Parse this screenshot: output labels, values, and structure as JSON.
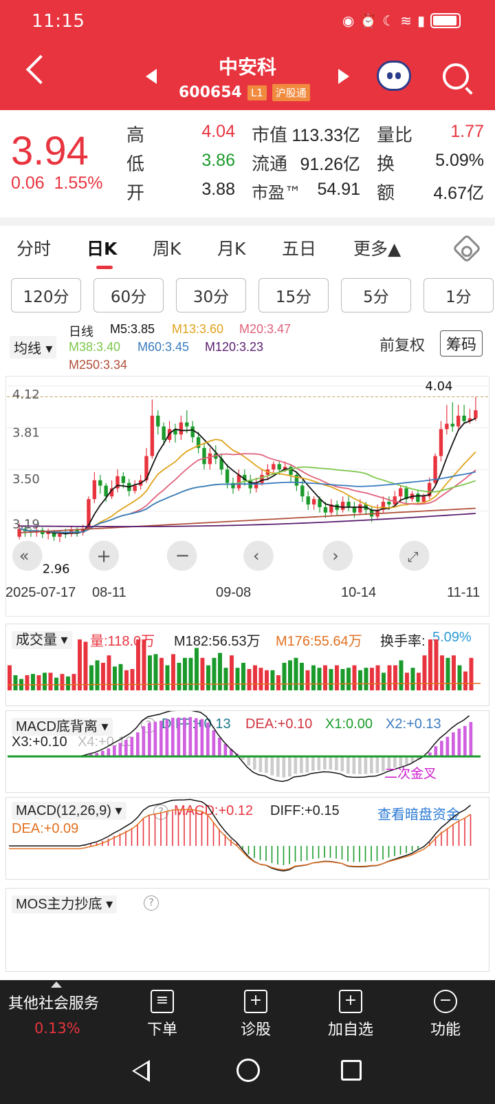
{
  "status": {
    "time": "11:15"
  },
  "header": {
    "name": "中安科",
    "code": "600654",
    "tag_l1": "L1",
    "tag_exchange": "沪股通"
  },
  "quote": {
    "price": "3.94",
    "change": "0.06",
    "change_pct": "1.55%",
    "high_label": "高",
    "high": "4.04",
    "low_label": "低",
    "low": "3.86",
    "open_label": "开",
    "open": "3.88",
    "mcap_label": "市值",
    "mcap": "113.33亿",
    "float_label": "流通",
    "float": "91.26亿",
    "pe_label": "市盈™",
    "pe": "54.91",
    "vr_label": "量比",
    "vr": "1.77",
    "turn_label": "换",
    "turn": "5.09%",
    "amt_label": "额",
    "amt": "4.67亿"
  },
  "tabs": [
    "分时",
    "日K",
    "周K",
    "月K",
    "五日",
    "更多▲"
  ],
  "minute_tabs": [
    "120分",
    "60分",
    "30分",
    "15分",
    "5分",
    "1分"
  ],
  "chart_header": {
    "ma_dropdown": "均线",
    "line_type": "日线",
    "m5": "M5:3.85",
    "m13": "M13:3.60",
    "m20": "M20:3.47",
    "m38": "M38:3.40",
    "m60": "M60:3.45",
    "m120": "M120:3.23",
    "m250": "M250:3.34",
    "adjust": "前复权",
    "chips": "筹码"
  },
  "colors": {
    "red": "#e8343f",
    "green": "#1a9a2b",
    "m5": "#111111",
    "m13": "#e0a21a",
    "m20": "#e0607a",
    "m38": "#7cc64a",
    "m60": "#3a7bbf",
    "m120": "#5a1e6e",
    "m250": "#b0503a"
  },
  "chart_data": {
    "type": "candlestick",
    "y_ticks": [
      "4.12",
      "3.81",
      "3.50",
      "3.19"
    ],
    "x_ticks": [
      "2025-07-17",
      "08-11",
      "09-08",
      "10-14",
      "11-11"
    ],
    "max_label": "4.04",
    "min_label": "2.96",
    "candles": [
      [
        3.0,
        3.06,
        3.1,
        2.98
      ],
      [
        3.06,
        3.04,
        3.08,
        3.0
      ],
      [
        3.04,
        3.03,
        3.06,
        3.0
      ],
      [
        3.03,
        3.05,
        3.08,
        3.0
      ],
      [
        3.05,
        3.02,
        3.07,
        2.99
      ],
      [
        3.02,
        3.04,
        3.06,
        2.98
      ],
      [
        3.04,
        3.0,
        3.05,
        2.97
      ],
      [
        3.0,
        3.03,
        3.05,
        2.96
      ],
      [
        3.03,
        3.02,
        3.06,
        2.99
      ],
      [
        3.02,
        3.05,
        3.08,
        3.0
      ],
      [
        3.05,
        3.03,
        3.07,
        3.0
      ],
      [
        3.03,
        3.06,
        3.09,
        3.01
      ],
      [
        3.06,
        3.28,
        3.3,
        3.05
      ],
      [
        3.28,
        3.42,
        3.48,
        3.25
      ],
      [
        3.42,
        3.38,
        3.46,
        3.32
      ],
      [
        3.38,
        3.3,
        3.4,
        3.26
      ],
      [
        3.3,
        3.36,
        3.42,
        3.28
      ],
      [
        3.36,
        3.45,
        3.5,
        3.33
      ],
      [
        3.45,
        3.4,
        3.48,
        3.36
      ],
      [
        3.4,
        3.34,
        3.43,
        3.3
      ],
      [
        3.34,
        3.38,
        3.42,
        3.32
      ],
      [
        3.38,
        3.42,
        3.46,
        3.35
      ],
      [
        3.42,
        3.6,
        3.66,
        3.4
      ],
      [
        3.6,
        3.9,
        4.02,
        3.58
      ],
      [
        3.9,
        3.82,
        3.94,
        3.76
      ],
      [
        3.82,
        3.72,
        3.85,
        3.68
      ],
      [
        3.72,
        3.8,
        3.86,
        3.7
      ],
      [
        3.8,
        3.76,
        3.84,
        3.7
      ],
      [
        3.76,
        3.85,
        3.9,
        3.72
      ],
      [
        3.85,
        3.82,
        3.94,
        3.77
      ],
      [
        3.82,
        3.74,
        3.86,
        3.7
      ],
      [
        3.74,
        3.66,
        3.78,
        3.62
      ],
      [
        3.66,
        3.54,
        3.7,
        3.5
      ],
      [
        3.54,
        3.62,
        3.66,
        3.5
      ],
      [
        3.62,
        3.58,
        3.68,
        3.54
      ],
      [
        3.58,
        3.5,
        3.62,
        3.46
      ],
      [
        3.5,
        3.4,
        3.54,
        3.36
      ],
      [
        3.4,
        3.36,
        3.44,
        3.32
      ],
      [
        3.36,
        3.46,
        3.5,
        3.34
      ],
      [
        3.46,
        3.42,
        3.5,
        3.38
      ],
      [
        3.42,
        3.36,
        3.46,
        3.32
      ],
      [
        3.36,
        3.4,
        3.44,
        3.33
      ],
      [
        3.4,
        3.46,
        3.5,
        3.38
      ],
      [
        3.46,
        3.5,
        3.54,
        3.42
      ],
      [
        3.5,
        3.54,
        3.56,
        3.46
      ],
      [
        3.54,
        3.5,
        3.56,
        3.46
      ],
      [
        3.5,
        3.52,
        3.56,
        3.48
      ],
      [
        3.52,
        3.46,
        3.54,
        3.4
      ],
      [
        3.46,
        3.38,
        3.48,
        3.34
      ],
      [
        3.38,
        3.3,
        3.42,
        3.26
      ],
      [
        3.3,
        3.24,
        3.34,
        3.2
      ],
      [
        3.24,
        3.28,
        3.3,
        3.2
      ],
      [
        3.28,
        3.22,
        3.3,
        3.18
      ],
      [
        3.22,
        3.18,
        3.26,
        3.14
      ],
      [
        3.18,
        3.24,
        3.28,
        3.16
      ],
      [
        3.24,
        3.2,
        3.27,
        3.16
      ],
      [
        3.2,
        3.26,
        3.3,
        3.18
      ],
      [
        3.26,
        3.22,
        3.3,
        3.19
      ],
      [
        3.22,
        3.18,
        3.26,
        3.14
      ],
      [
        3.18,
        3.24,
        3.28,
        3.16
      ],
      [
        3.24,
        3.2,
        3.26,
        3.16
      ],
      [
        3.2,
        3.15,
        3.22,
        3.11
      ],
      [
        3.15,
        3.2,
        3.24,
        3.13
      ],
      [
        3.2,
        3.26,
        3.3,
        3.18
      ],
      [
        3.26,
        3.24,
        3.3,
        3.2
      ],
      [
        3.24,
        3.3,
        3.34,
        3.22
      ],
      [
        3.3,
        3.36,
        3.38,
        3.26
      ],
      [
        3.36,
        3.28,
        3.38,
        3.24
      ],
      [
        3.28,
        3.32,
        3.34,
        3.26
      ],
      [
        3.32,
        3.26,
        3.34,
        3.24
      ],
      [
        3.26,
        3.3,
        3.32,
        3.24
      ],
      [
        3.3,
        3.4,
        3.44,
        3.28
      ],
      [
        3.4,
        3.6,
        3.62,
        3.38
      ],
      [
        3.6,
        3.8,
        3.86,
        3.56
      ],
      [
        3.8,
        3.84,
        3.98,
        3.76
      ],
      [
        3.84,
        3.82,
        4.0,
        3.78
      ],
      [
        3.82,
        3.9,
        3.98,
        3.8
      ],
      [
        3.9,
        3.86,
        3.98,
        3.84
      ],
      [
        3.86,
        3.88,
        3.95,
        3.84
      ],
      [
        3.88,
        3.94,
        4.04,
        3.86
      ]
    ]
  },
  "volume": {
    "label": "成交量",
    "vol": "量:118.0万",
    "m182": "M182:56.53万",
    "m176": "M176:55.64万",
    "turnover": "换手率:",
    "turnover_val": "5.09%"
  },
  "macd_div": {
    "label": "MACD底背离",
    "diff": "DIFF:+0.13",
    "dea": "DEA:+0.10",
    "x1": "X1:0.00",
    "x2": "X2:+0.13",
    "x3": "X3:+0.10",
    "x4": "X4:+0.10",
    "note": "二次金叉"
  },
  "macd": {
    "label": "MACD(12,26,9)",
    "macd": "MACD:+0.12",
    "diff": "DIFF:+0.15",
    "dea": "DEA:+0.09",
    "link": "查看暗盘资金"
  },
  "mos": {
    "label": "MOS主力抄底"
  },
  "bottom": {
    "sector": "其他社会服务",
    "sector_pct": "0.13%",
    "btn1": "下单",
    "btn2": "诊股",
    "btn3": "加自选",
    "btn4": "功能"
  }
}
